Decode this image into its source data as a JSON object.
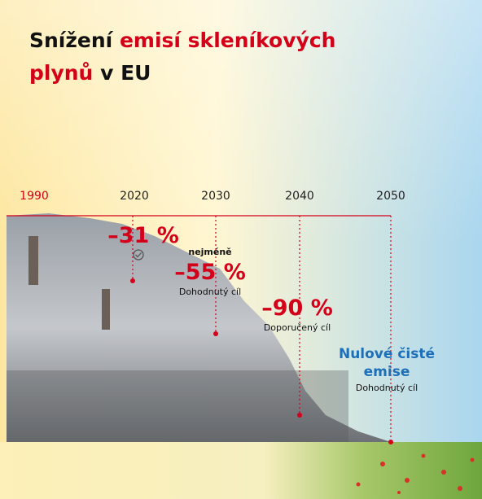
{
  "header": {
    "title": [
      {
        "text": "Snížení ",
        "accent": false
      },
      {
        "text": "emisí skleníkových",
        "accent": true
      },
      {
        "text": "plynů",
        "accent": true
      },
      {
        "text": " v EU",
        "accent": false
      }
    ]
  },
  "timeline": {
    "years": [
      "1990",
      "2020",
      "2030",
      "2040",
      "2050"
    ],
    "milestones": [
      {
        "year": "2020",
        "value": "–31 %"
      },
      {
        "year": "2030",
        "qualifier": "nejméně",
        "value": "–55 %",
        "note": "Dohodnutý cíl"
      },
      {
        "year": "2040",
        "value": "–90 %",
        "note": "Doporučený cíl"
      },
      {
        "year": "2050",
        "value": "Nulové čisté emise",
        "note": "Dohodnutý cíl"
      }
    ]
  }
}
